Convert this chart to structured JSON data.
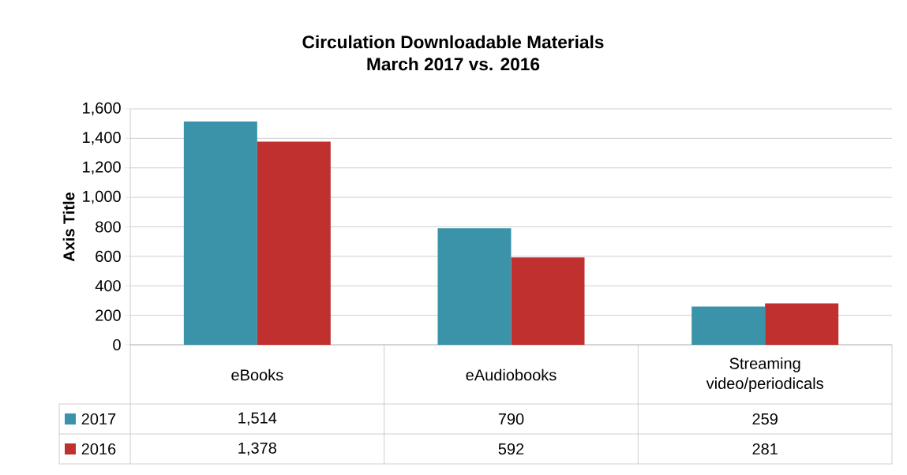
{
  "chart_data": {
    "type": "bar",
    "title": "Circulation Downloadable Materials",
    "subtitle": "March 2017 vs. 2016",
    "ylabel": "Axis Title",
    "categories": [
      "eBooks",
      "eAudiobooks",
      "Streaming video/periodicals"
    ],
    "series": [
      {
        "name": "2017",
        "color": "#3a93a8",
        "values": [
          1514,
          790,
          259
        ],
        "value_labels": [
          "1,514",
          "790",
          "259"
        ]
      },
      {
        "name": "2016",
        "color": "#c0302f",
        "values": [
          1378,
          592,
          281
        ],
        "value_labels": [
          "1,378",
          "592",
          "281"
        ]
      }
    ],
    "ylim": [
      0,
      1600
    ],
    "yticks": [
      0,
      200,
      400,
      600,
      800,
      {
        "value": 1000,
        "label": "1,000"
      },
      {
        "value": 1200,
        "label": "1,200"
      },
      {
        "value": 1400,
        "label": "1,400"
      },
      {
        "value": 1600,
        "label": "1,600"
      }
    ],
    "grid": "y",
    "legend": "bottom"
  }
}
